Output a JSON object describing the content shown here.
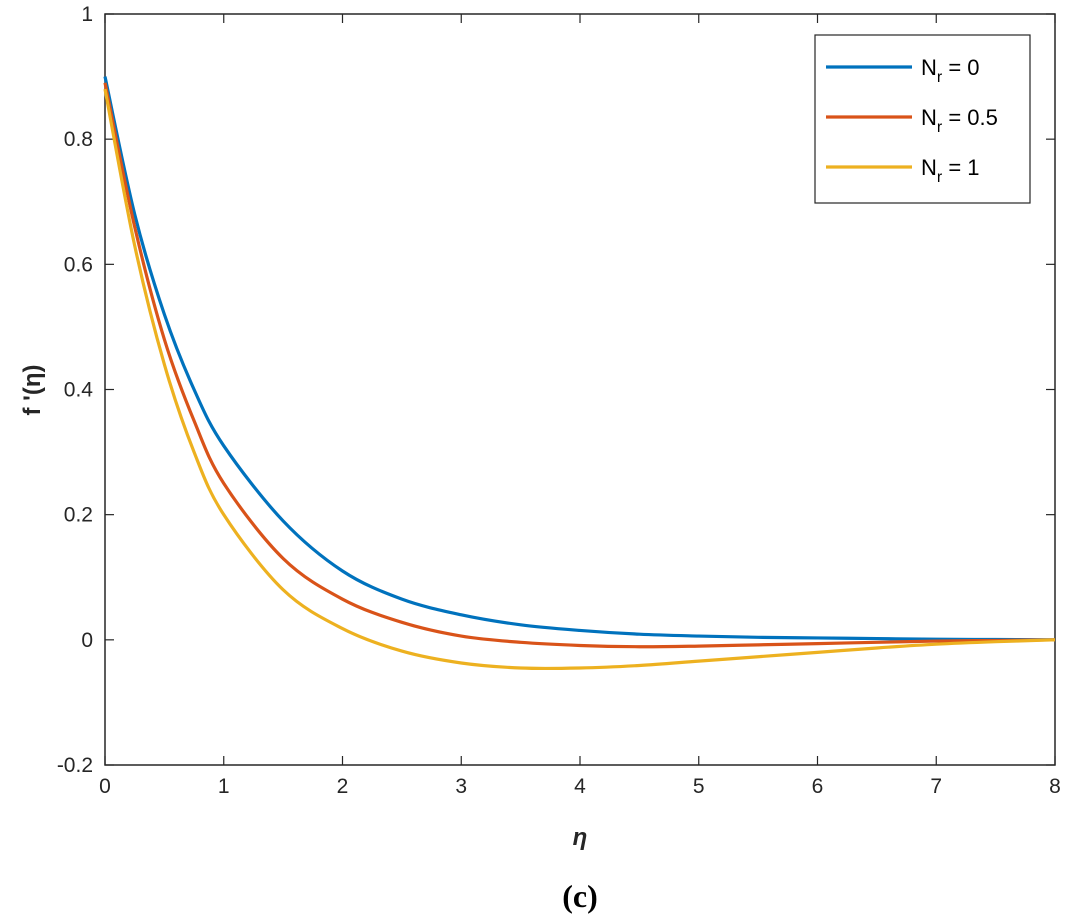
{
  "chart_data": {
    "type": "line",
    "xlabel": "η",
    "ylabel": "f '(η)",
    "caption": "(c)",
    "xlim": [
      0,
      8
    ],
    "ylim": [
      -0.2,
      1
    ],
    "xticks": [
      "0",
      "1",
      "2",
      "3",
      "4",
      "5",
      "6",
      "7",
      "8"
    ],
    "yticks": [
      "-0.2",
      "0",
      "0.2",
      "0.4",
      "0.6",
      "0.8",
      "1"
    ],
    "grid": false,
    "legend_position": "top-right",
    "series": [
      {
        "name": "N_r = 0",
        "legend_main": "N",
        "legend_sub": "r",
        "legend_rest": " = 0",
        "color": "#0072BD",
        "x": [
          0,
          0.25,
          0.5,
          0.75,
          1,
          1.5,
          2,
          2.5,
          3,
          3.5,
          4,
          4.5,
          5,
          5.5,
          6,
          6.5,
          7,
          7.5,
          8
        ],
        "y": [
          0.9,
          0.68,
          0.52,
          0.4,
          0.31,
          0.19,
          0.11,
          0.065,
          0.04,
          0.024,
          0.015,
          0.009,
          0.006,
          0.004,
          0.003,
          0.002,
          0.001,
          0.0005,
          0
        ]
      },
      {
        "name": "N_r = 0.5",
        "legend_main": "N",
        "legend_sub": "r",
        "legend_rest": " = 0.5",
        "color": "#D95319",
        "x": [
          0,
          0.25,
          0.5,
          0.75,
          1,
          1.5,
          2,
          2.5,
          3,
          3.5,
          4,
          4.5,
          5,
          5.5,
          6,
          6.5,
          7,
          7.5,
          8
        ],
        "y": [
          0.89,
          0.66,
          0.48,
          0.35,
          0.25,
          0.13,
          0.065,
          0.028,
          0.006,
          -0.004,
          -0.009,
          -0.011,
          -0.01,
          -0.008,
          -0.006,
          -0.004,
          -0.002,
          -0.001,
          0
        ]
      },
      {
        "name": "N_r = 1",
        "legend_main": "N",
        "legend_sub": "r",
        "legend_rest": " = 1",
        "color": "#EDB120",
        "x": [
          0,
          0.25,
          0.5,
          0.75,
          1,
          1.5,
          2,
          2.5,
          3,
          3.5,
          4,
          4.5,
          5,
          5.5,
          6,
          6.5,
          7,
          7.5,
          8
        ],
        "y": [
          0.88,
          0.63,
          0.44,
          0.3,
          0.2,
          0.08,
          0.018,
          -0.018,
          -0.037,
          -0.045,
          -0.045,
          -0.041,
          -0.034,
          -0.027,
          -0.02,
          -0.013,
          -0.007,
          -0.003,
          0
        ]
      }
    ]
  }
}
